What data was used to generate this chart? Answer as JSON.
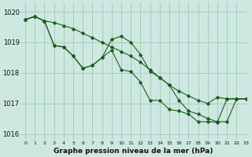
{
  "background_color": "#cce8e0",
  "grid_color": "#aaccbb",
  "line_color": "#1a5e1a",
  "title": "Graphe pression niveau de la mer (hPa)",
  "xlim": [
    -0.5,
    23
  ],
  "ylim": [
    1015.8,
    1020.3
  ],
  "yticks": [
    1016,
    1017,
    1018,
    1019,
    1020
  ],
  "xticks": [
    0,
    1,
    2,
    3,
    4,
    5,
    6,
    7,
    8,
    9,
    10,
    11,
    12,
    13,
    14,
    15,
    16,
    17,
    18,
    19,
    20,
    21,
    22,
    23
  ],
  "series": [
    {
      "x": [
        0,
        1,
        2,
        3,
        4,
        5,
        6,
        7,
        8,
        9,
        10,
        11,
        12,
        13,
        14,
        15,
        16,
        17,
        18,
        19,
        20,
        21,
        22,
        23
      ],
      "y": [
        1019.75,
        1019.85,
        1019.7,
        1019.65,
        1019.55,
        1019.45,
        1019.3,
        1019.15,
        1019.0,
        1018.85,
        1018.7,
        1018.55,
        1018.35,
        1018.1,
        1017.85,
        1017.6,
        1017.4,
        1017.25,
        1017.1,
        1017.0,
        1017.2,
        1017.15,
        1017.15,
        1017.15
      ]
    },
    {
      "x": [
        0,
        1,
        2,
        3,
        4,
        5,
        6,
        7,
        8,
        9,
        10,
        11,
        12,
        13,
        14,
        15,
        16,
        17,
        18,
        19,
        20,
        21,
        22,
        23
      ],
      "y": [
        1019.75,
        1019.85,
        1019.7,
        1018.9,
        1018.85,
        1018.55,
        1018.15,
        1018.25,
        1018.5,
        1019.1,
        1019.2,
        1019.0,
        1018.6,
        1018.05,
        1017.85,
        1017.6,
        1017.1,
        1016.75,
        1016.65,
        1016.5,
        1016.4,
        1016.4,
        1017.15,
        1017.15
      ]
    },
    {
      "x": [
        0,
        1,
        2,
        3,
        4,
        5,
        6,
        7,
        8,
        9,
        10,
        11,
        12,
        13,
        14,
        15,
        16,
        17,
        18,
        19,
        20,
        21,
        22,
        23
      ],
      "y": [
        1019.75,
        1019.85,
        1019.7,
        1018.9,
        1018.85,
        1018.55,
        1018.15,
        1018.25,
        1018.5,
        1018.75,
        1018.1,
        1018.05,
        1017.7,
        1017.1,
        1017.1,
        1016.8,
        1016.75,
        1016.65,
        1016.4,
        1016.4,
        1016.38,
        1017.15,
        1017.15,
        1017.15
      ]
    }
  ]
}
